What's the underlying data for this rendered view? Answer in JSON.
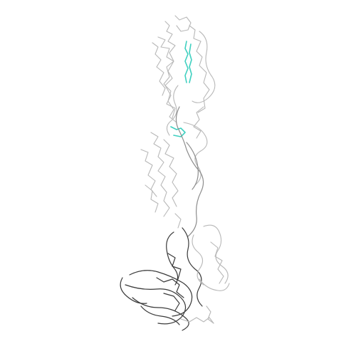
{
  "image": {
    "subject": "protein-backbone-trace",
    "background": "#ffffff",
    "colors": {
      "light_trace": "#b8b8b8",
      "mid_trace": "#8d8d8d",
      "dark_trace": "#3a3a3a",
      "highlight": "#3fd0c0"
    }
  }
}
